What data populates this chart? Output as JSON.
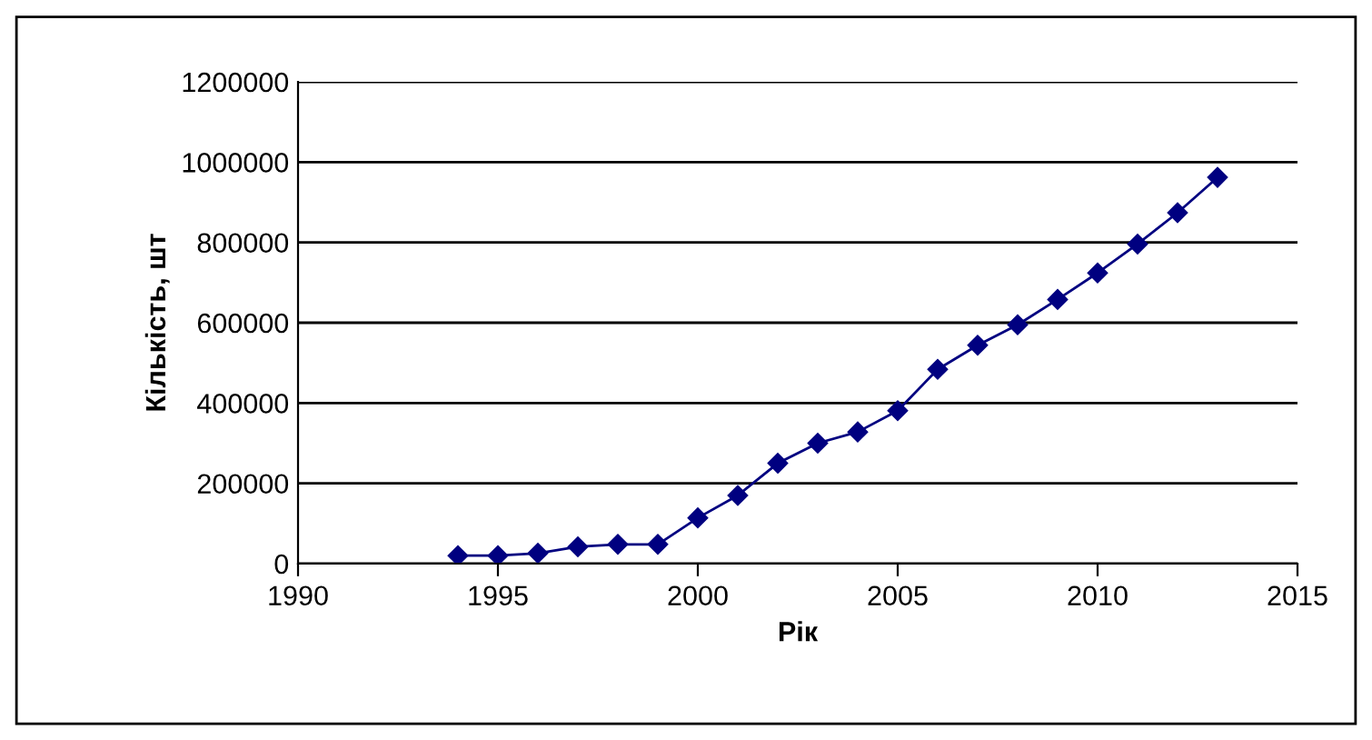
{
  "chart_data": {
    "type": "line",
    "xlabel": "Рік",
    "ylabel": "Кількість, шт",
    "x": [
      1994,
      1995,
      1996,
      1997,
      1998,
      1999,
      2000,
      2001,
      2002,
      2003,
      2004,
      2005,
      2006,
      2007,
      2008,
      2009,
      2010,
      2011,
      2012,
      2013
    ],
    "series": [
      {
        "color": "#000080",
        "values": [
          20000,
          20000,
          26000,
          42000,
          48000,
          48000,
          114000,
          170000,
          250000,
          300000,
          328000,
          381000,
          484000,
          544000,
          595000,
          658000,
          724000,
          796000,
          874000,
          962000
        ]
      }
    ],
    "xlim": [
      1990,
      2015
    ],
    "xticks": [
      1990,
      1995,
      2000,
      2005,
      2010,
      2015
    ],
    "ylim": [
      0,
      1200000
    ],
    "yticks": [
      0,
      200000,
      400000,
      600000,
      800000,
      1000000,
      1200000
    ],
    "grid": "y",
    "marker": "diamond",
    "line_style": "solid",
    "legend": false
  }
}
